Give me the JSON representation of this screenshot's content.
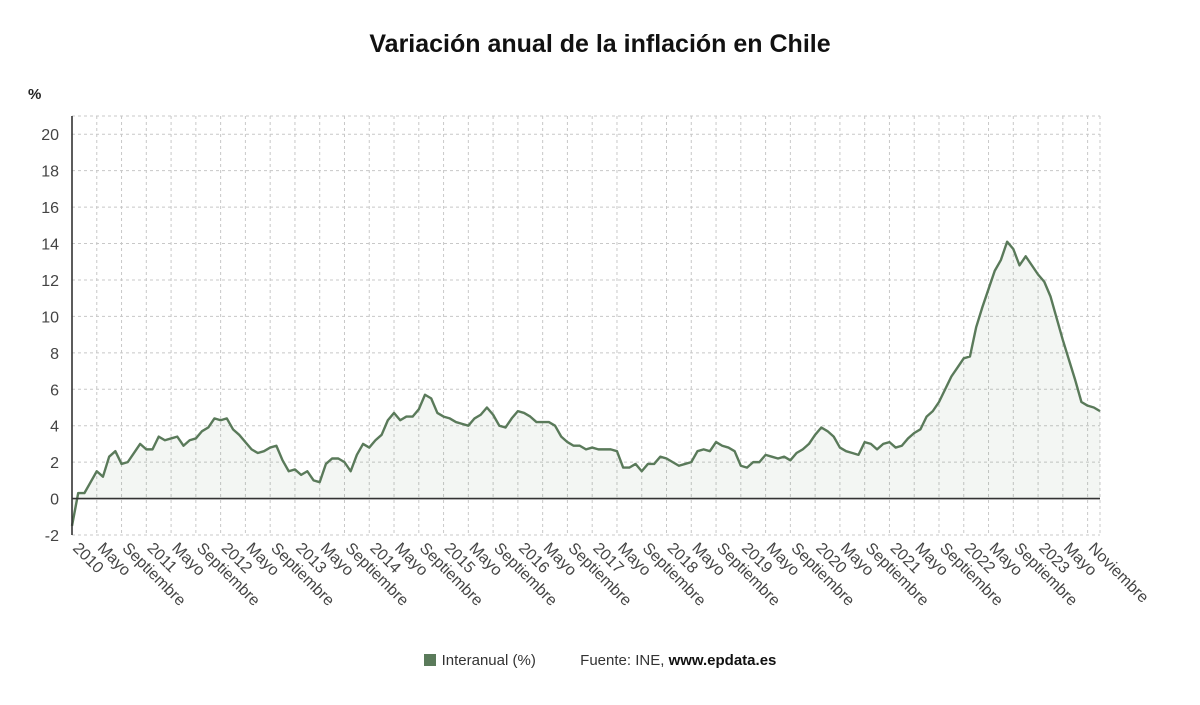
{
  "title": "Variación anual de la inflación en Chile",
  "unit": "%",
  "legend": {
    "label": "Interanual (%)",
    "color": "#5a7a5a"
  },
  "source": {
    "prefix": "Fuente: INE,",
    "site": "www.epdata.es"
  },
  "chart_data": {
    "type": "area",
    "title": "Variación anual de la inflación en Chile",
    "ylabel": "%",
    "ylim": [
      -2,
      21
    ],
    "yticks": [
      -2,
      0,
      2,
      4,
      6,
      8,
      10,
      12,
      14,
      16,
      18,
      20
    ],
    "grid": true,
    "legend_position": "bottom",
    "x_start": "2010-01",
    "x_end": "2023-11",
    "x_labels": [
      "2010",
      "Mayo",
      "Septiembre",
      "2011",
      "Mayo",
      "Septiembre",
      "2012",
      "Mayo",
      "Septiembre",
      "2013",
      "Mayo",
      "Septiembre",
      "2014",
      "Mayo",
      "Septiembre",
      "2015",
      "Mayo",
      "Septiembre",
      "2016",
      "Mayo",
      "Septiembre",
      "2017",
      "Mayo",
      "Septiembre",
      "2018",
      "Mayo",
      "Septiembre",
      "2019",
      "Mayo",
      "Septiembre",
      "2020",
      "Mayo",
      "Septiembre",
      "2021",
      "Mayo",
      "Septiembre",
      "2022",
      "Mayo",
      "Septiembre",
      "2023",
      "Mayo",
      "Noviembre"
    ],
    "series": [
      {
        "name": "Interanual (%)",
        "color": "#5a7a5a",
        "values": [
          -1.5,
          0.3,
          0.3,
          0.9,
          1.5,
          1.2,
          2.3,
          2.6,
          1.9,
          2.0,
          2.5,
          3.0,
          2.7,
          2.7,
          3.4,
          3.2,
          3.3,
          3.4,
          2.9,
          3.2,
          3.3,
          3.7,
          3.9,
          4.4,
          4.3,
          4.4,
          3.8,
          3.5,
          3.1,
          2.7,
          2.5,
          2.6,
          2.8,
          2.9,
          2.1,
          1.5,
          1.6,
          1.3,
          1.5,
          1.0,
          0.9,
          1.9,
          2.2,
          2.2,
          2.0,
          1.5,
          2.4,
          3.0,
          2.8,
          3.2,
          3.5,
          4.3,
          4.7,
          4.3,
          4.5,
          4.5,
          4.9,
          5.7,
          5.5,
          4.7,
          4.5,
          4.4,
          4.2,
          4.1,
          4.0,
          4.4,
          4.6,
          5.0,
          4.6,
          4.0,
          3.9,
          4.4,
          4.8,
          4.7,
          4.5,
          4.2,
          4.2,
          4.2,
          4.0,
          3.4,
          3.1,
          2.9,
          2.9,
          2.7,
          2.8,
          2.7,
          2.7,
          2.7,
          2.6,
          1.7,
          1.7,
          1.9,
          1.5,
          1.9,
          1.9,
          2.3,
          2.2,
          2.0,
          1.8,
          1.9,
          2.0,
          2.6,
          2.7,
          2.6,
          3.1,
          2.9,
          2.8,
          2.6,
          1.8,
          1.7,
          2.0,
          2.0,
          2.4,
          2.3,
          2.2,
          2.3,
          2.1,
          2.5,
          2.7,
          3.0,
          3.5,
          3.9,
          3.7,
          3.4,
          2.8,
          2.6,
          2.5,
          2.4,
          3.1,
          3.0,
          2.7,
          3.0,
          3.1,
          2.8,
          2.9,
          3.3,
          3.6,
          3.8,
          4.5,
          4.8,
          5.3,
          6.0,
          6.7,
          7.2,
          7.7,
          7.8,
          9.4,
          10.5,
          11.5,
          12.5,
          13.1,
          14.1,
          13.7,
          12.8,
          13.3,
          12.8,
          12.3,
          11.9,
          11.1,
          9.9,
          8.7,
          7.6,
          6.5,
          5.3,
          5.1,
          5.0,
          4.8
        ]
      }
    ]
  }
}
